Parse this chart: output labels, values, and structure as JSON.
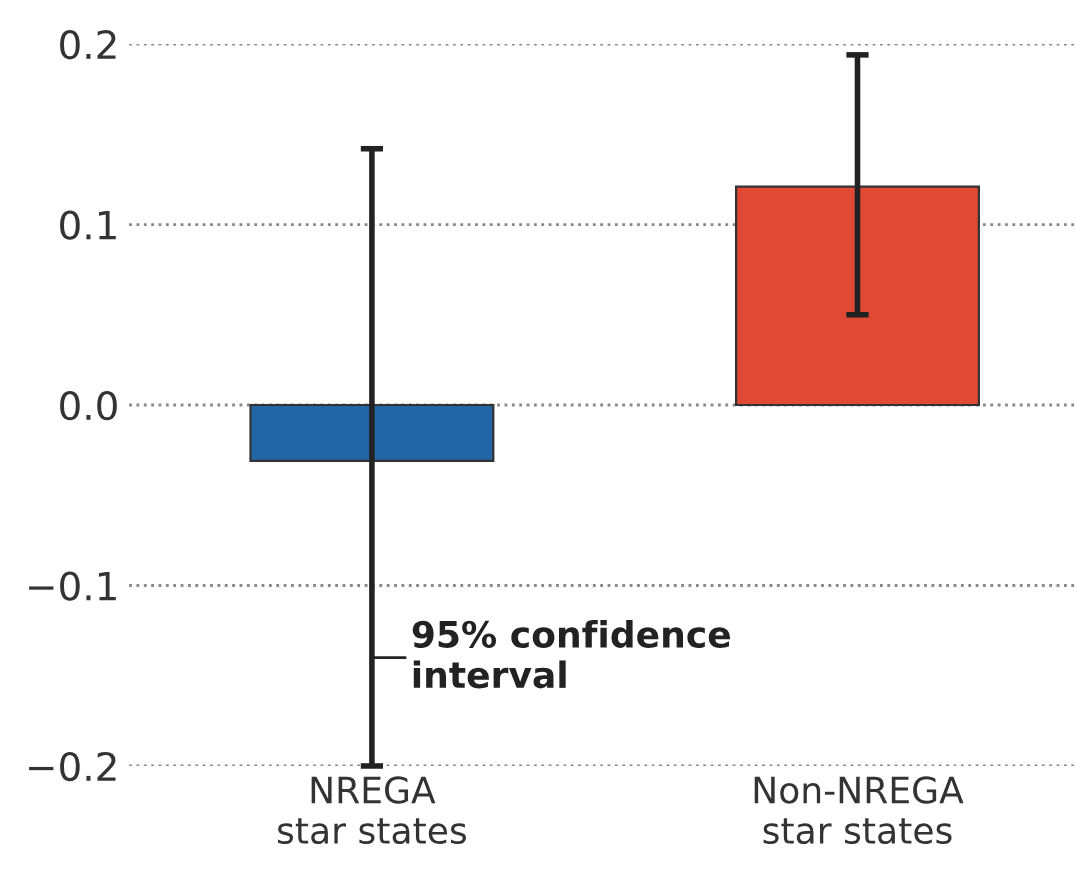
{
  "chart_data": {
    "type": "bar",
    "categories": [
      "NREGA\nstar states",
      "Non-NREGA\nstar states"
    ],
    "values": [
      -0.031,
      0.121
    ],
    "colors": [
      "#2266a6",
      "#e04a35"
    ],
    "errors": [
      [
        -0.2,
        0.142
      ],
      [
        0.05,
        0.194
      ]
    ],
    "ylim": [
      -0.2,
      0.2
    ],
    "yticks": [
      {
        "value": 0.2,
        "label": "0.2"
      },
      {
        "value": 0.1,
        "label": "0.1"
      },
      {
        "value": 0.0,
        "label": "0.0"
      },
      {
        "value": -0.1,
        "label": "−0.1"
      },
      {
        "value": -0.2,
        "label": "−0.2"
      }
    ],
    "grid": "y",
    "annotations": [
      {
        "text": "95% confidence\ninterval",
        "x": "NREGA\nstar states",
        "y": -0.14
      }
    ]
  }
}
